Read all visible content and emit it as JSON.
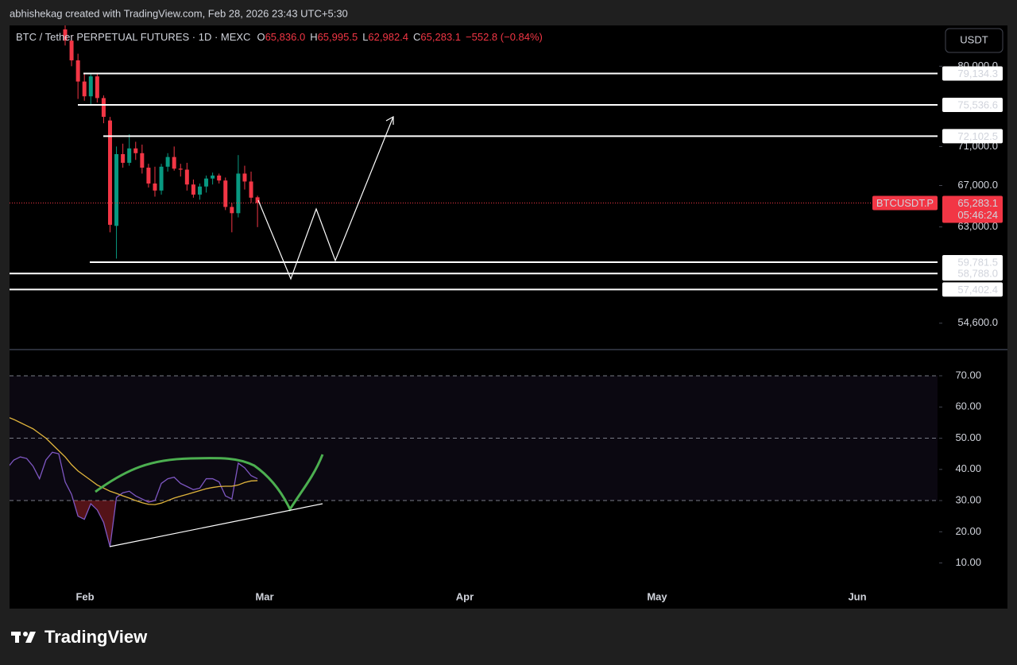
{
  "top_bar": "abhishekag created with TradingView.com, Feb 28, 2026 23:43 UTC+5:30",
  "footer": {
    "logo_text": "TradingView"
  },
  "chart_data": [
    {
      "type": "candlestick",
      "legend": {
        "symbol": "BTC / Tether PERPETUAL FUTURES · 1D · MEXC",
        "fields": [
          {
            "key": "O",
            "value": "65,836.0"
          },
          {
            "key": "H",
            "value": "65,995.5"
          },
          {
            "key": "L",
            "value": "62,982.4"
          },
          {
            "key": "C",
            "value": "65,283.1"
          }
        ],
        "change": "−552.8 (−0.84%)"
      },
      "currency": "USDT",
      "up_color": "#089981",
      "down_color": "#f23645",
      "open": [
        84500,
        83100,
        80700,
        78200,
        76500,
        78800,
        76300,
        73800,
        63100,
        70200,
        69300,
        70800,
        70300,
        68800,
        67200,
        66500,
        68900,
        69900,
        68700,
        68600,
        67100,
        66100,
        66900,
        67700,
        68000,
        67500,
        64900,
        64300,
        68200,
        67400,
        65836.0
      ],
      "high": [
        85000,
        83800,
        81500,
        79200,
        79100,
        79100,
        76600,
        74200,
        71000,
        71300,
        72300,
        71500,
        71200,
        69200,
        68900,
        69200,
        70300,
        71000,
        69200,
        69300,
        67600,
        67200,
        68000,
        68300,
        68200,
        67800,
        65300,
        70100,
        69000,
        68400,
        65995.5
      ],
      "low": [
        82500,
        80000,
        76200,
        76000,
        75500,
        75800,
        73500,
        62500,
        60100,
        68800,
        69000,
        69600,
        68200,
        66800,
        65900,
        66100,
        68400,
        68500,
        67900,
        66500,
        65800,
        65600,
        66300,
        67100,
        67200,
        64600,
        62500,
        63900,
        66600,
        65300,
        62982.4
      ],
      "close": [
        83100,
        80700,
        78200,
        76500,
        78800,
        76300,
        74200,
        63200,
        70200,
        69300,
        70800,
        70300,
        68800,
        67200,
        66500,
        68900,
        69900,
        68700,
        68600,
        67100,
        66100,
        66900,
        67700,
        68000,
        67500,
        64900,
        64300,
        68200,
        67400,
        65800,
        65283.1
      ],
      "ylim": [
        52500,
        85000
      ],
      "log_scale": true,
      "yticks": [
        {
          "value": 80000,
          "label": "80,000.0"
        },
        {
          "value": 71000,
          "label": "71,000.0"
        },
        {
          "value": 67000,
          "label": "67,000.0"
        },
        {
          "value": 63000,
          "label": "63,000.0"
        },
        {
          "value": 54600,
          "label": "54,600.0"
        }
      ],
      "xticks": [
        "Feb",
        "Mar",
        "Apr",
        "May",
        "Jun"
      ],
      "levels": {
        "color": "#ffffff",
        "values": [
          79134.3,
          75536.6,
          72102.5,
          59781.5,
          58788.0,
          57402.4
        ],
        "value_labels": [
          "79,134.3",
          "75,536.6",
          "72,102.5",
          "59,781.5",
          "58,788.0",
          "57,402.4"
        ]
      },
      "last_price": {
        "name": "BTCUSDT.P",
        "value_label": "65,283.1",
        "countdown": "05:46:24",
        "color": "#f23645"
      }
    },
    {
      "type": "line",
      "ylim": [
        2,
        78.4
      ],
      "yticks": [
        {
          "value": 70,
          "label": "70.00"
        },
        {
          "value": 60,
          "label": "60.00"
        },
        {
          "value": 50,
          "label": "50.00"
        },
        {
          "value": 40,
          "label": "40.00"
        },
        {
          "value": 30,
          "label": "30.00"
        },
        {
          "value": 20,
          "label": "20.00"
        },
        {
          "value": 10,
          "label": "10.00"
        }
      ],
      "hlines": [
        70,
        50,
        30
      ],
      "band": [
        30,
        70
      ],
      "series": [
        {
          "color": "#7e57c2",
          "values": [
            40.5,
            43,
            44,
            43.5,
            41,
            37,
            43,
            45.5,
            45,
            36,
            32,
            25,
            24,
            29,
            27,
            23,
            15.2,
            31,
            32.5,
            33,
            31.5,
            30.5,
            29.5,
            30,
            35.5,
            37,
            37.5,
            35.5,
            34.5,
            33.5,
            34,
            37,
            37,
            36,
            31.5,
            30.5,
            42,
            40.5,
            38,
            37
          ]
        },
        {
          "color": "#e0b43c",
          "values": [
            56.8,
            56,
            55,
            54,
            53,
            51.5,
            50,
            48,
            46,
            44,
            41.5,
            39.5,
            38,
            36.5,
            35,
            34,
            33,
            32.3,
            31.5,
            30.8,
            30,
            29.3,
            28.8,
            28.7,
            29.2,
            30,
            30.8,
            31.4,
            32,
            32.6,
            33.2,
            33.8,
            34.2,
            34.5,
            34.6,
            34.6,
            35,
            35.8,
            36.3,
            36.4
          ]
        }
      ]
    }
  ]
}
